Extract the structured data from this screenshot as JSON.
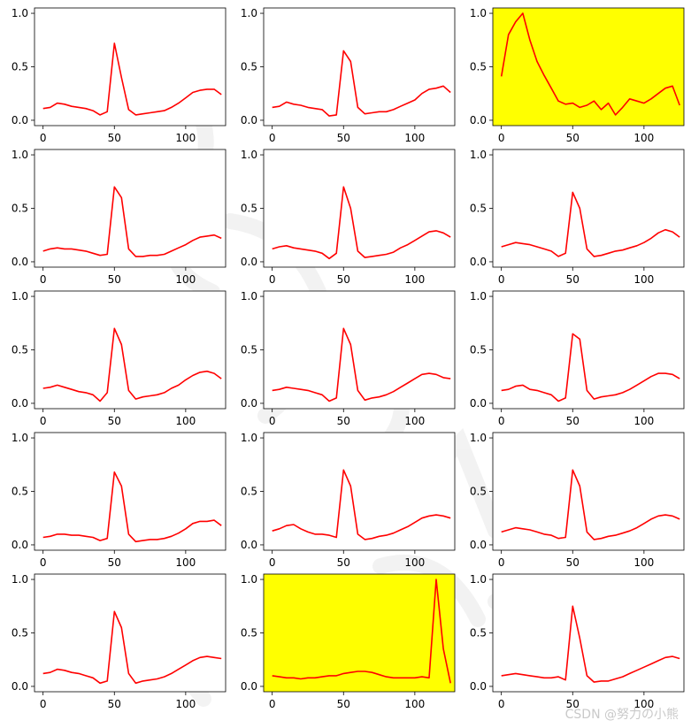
{
  "watermark": "CSDN @努力の小熊",
  "highlight_color": "#FFFF00",
  "line_color": "#FF0000",
  "chart_data": {
    "type": "line",
    "layout": "5x3 grid of small multiples",
    "xlim": [
      -6,
      128
    ],
    "ylim": [
      -0.05,
      1.05
    ],
    "xticks": [
      0,
      50,
      100
    ],
    "yticks": [
      0.0,
      0.5,
      1.0
    ],
    "xtick_labels": [
      "0",
      "50",
      "100"
    ],
    "ytick_labels": [
      "0.0",
      "0.5",
      "1.0"
    ],
    "grid": false,
    "x_step": 5,
    "panels": [
      {
        "highlighted": false,
        "y": [
          0.11,
          0.12,
          0.16,
          0.15,
          0.13,
          0.12,
          0.11,
          0.09,
          0.05,
          0.08,
          0.72,
          0.4,
          0.1,
          0.05,
          0.06,
          0.07,
          0.08,
          0.09,
          0.12,
          0.16,
          0.21,
          0.26,
          0.28,
          0.29,
          0.29,
          0.24
        ]
      },
      {
        "highlighted": false,
        "y": [
          0.12,
          0.13,
          0.17,
          0.15,
          0.14,
          0.12,
          0.11,
          0.1,
          0.04,
          0.05,
          0.65,
          0.55,
          0.12,
          0.06,
          0.07,
          0.08,
          0.08,
          0.1,
          0.13,
          0.16,
          0.19,
          0.25,
          0.29,
          0.3,
          0.32,
          0.26
        ]
      },
      {
        "highlighted": true,
        "y": [
          0.41,
          0.8,
          0.92,
          1.0,
          0.75,
          0.55,
          0.42,
          0.3,
          0.18,
          0.15,
          0.16,
          0.12,
          0.14,
          0.18,
          0.1,
          0.16,
          0.05,
          0.12,
          0.2,
          0.18,
          0.16,
          0.2,
          0.25,
          0.3,
          0.32,
          0.14
        ]
      },
      {
        "highlighted": false,
        "y": [
          0.1,
          0.12,
          0.13,
          0.12,
          0.12,
          0.11,
          0.1,
          0.08,
          0.06,
          0.07,
          0.7,
          0.6,
          0.12,
          0.05,
          0.05,
          0.06,
          0.06,
          0.07,
          0.1,
          0.13,
          0.16,
          0.2,
          0.23,
          0.24,
          0.25,
          0.22
        ]
      },
      {
        "highlighted": false,
        "y": [
          0.12,
          0.14,
          0.15,
          0.13,
          0.12,
          0.11,
          0.1,
          0.08,
          0.03,
          0.08,
          0.7,
          0.5,
          0.1,
          0.04,
          0.05,
          0.06,
          0.07,
          0.09,
          0.13,
          0.16,
          0.2,
          0.24,
          0.28,
          0.29,
          0.27,
          0.23
        ]
      },
      {
        "highlighted": false,
        "y": [
          0.14,
          0.16,
          0.18,
          0.17,
          0.16,
          0.14,
          0.12,
          0.1,
          0.05,
          0.08,
          0.65,
          0.5,
          0.12,
          0.05,
          0.06,
          0.08,
          0.1,
          0.11,
          0.13,
          0.15,
          0.18,
          0.22,
          0.27,
          0.3,
          0.28,
          0.23
        ]
      },
      {
        "highlighted": false,
        "y": [
          0.14,
          0.15,
          0.17,
          0.15,
          0.13,
          0.11,
          0.1,
          0.08,
          0.02,
          0.1,
          0.7,
          0.55,
          0.12,
          0.04,
          0.06,
          0.07,
          0.08,
          0.1,
          0.14,
          0.17,
          0.22,
          0.26,
          0.29,
          0.3,
          0.28,
          0.23
        ]
      },
      {
        "highlighted": false,
        "y": [
          0.12,
          0.13,
          0.15,
          0.14,
          0.13,
          0.12,
          0.1,
          0.08,
          0.02,
          0.05,
          0.7,
          0.55,
          0.12,
          0.03,
          0.05,
          0.06,
          0.08,
          0.11,
          0.15,
          0.19,
          0.23,
          0.27,
          0.28,
          0.27,
          0.24,
          0.23
        ]
      },
      {
        "highlighted": false,
        "y": [
          0.12,
          0.13,
          0.16,
          0.17,
          0.13,
          0.12,
          0.1,
          0.08,
          0.02,
          0.05,
          0.65,
          0.6,
          0.12,
          0.04,
          0.06,
          0.07,
          0.08,
          0.1,
          0.13,
          0.17,
          0.21,
          0.25,
          0.28,
          0.28,
          0.27,
          0.23
        ]
      },
      {
        "highlighted": false,
        "y": [
          0.07,
          0.08,
          0.1,
          0.1,
          0.09,
          0.09,
          0.08,
          0.07,
          0.04,
          0.06,
          0.68,
          0.55,
          0.1,
          0.03,
          0.04,
          0.05,
          0.05,
          0.06,
          0.08,
          0.11,
          0.15,
          0.2,
          0.22,
          0.22,
          0.23,
          0.18
        ]
      },
      {
        "highlighted": false,
        "y": [
          0.13,
          0.15,
          0.18,
          0.19,
          0.15,
          0.12,
          0.1,
          0.1,
          0.09,
          0.07,
          0.7,
          0.55,
          0.1,
          0.05,
          0.06,
          0.08,
          0.09,
          0.11,
          0.14,
          0.17,
          0.21,
          0.25,
          0.27,
          0.28,
          0.27,
          0.25
        ]
      },
      {
        "highlighted": false,
        "y": [
          0.12,
          0.14,
          0.16,
          0.15,
          0.14,
          0.12,
          0.1,
          0.09,
          0.06,
          0.07,
          0.7,
          0.55,
          0.12,
          0.05,
          0.06,
          0.08,
          0.09,
          0.11,
          0.13,
          0.16,
          0.2,
          0.24,
          0.27,
          0.28,
          0.27,
          0.24
        ]
      },
      {
        "highlighted": false,
        "y": [
          0.12,
          0.13,
          0.16,
          0.15,
          0.13,
          0.12,
          0.1,
          0.08,
          0.03,
          0.05,
          0.7,
          0.55,
          0.12,
          0.03,
          0.05,
          0.06,
          0.07,
          0.09,
          0.12,
          0.16,
          0.2,
          0.24,
          0.27,
          0.28,
          0.27,
          0.26
        ]
      },
      {
        "highlighted": true,
        "y": [
          0.1,
          0.09,
          0.08,
          0.08,
          0.07,
          0.08,
          0.08,
          0.09,
          0.1,
          0.1,
          0.12,
          0.13,
          0.14,
          0.14,
          0.13,
          0.11,
          0.09,
          0.08,
          0.08,
          0.08,
          0.08,
          0.09,
          0.08,
          1.0,
          0.35,
          0.03
        ]
      },
      {
        "highlighted": false,
        "y": [
          0.1,
          0.11,
          0.12,
          0.11,
          0.1,
          0.09,
          0.08,
          0.08,
          0.09,
          0.06,
          0.75,
          0.45,
          0.1,
          0.04,
          0.05,
          0.05,
          0.07,
          0.09,
          0.12,
          0.15,
          0.18,
          0.21,
          0.24,
          0.27,
          0.28,
          0.26
        ]
      }
    ]
  }
}
